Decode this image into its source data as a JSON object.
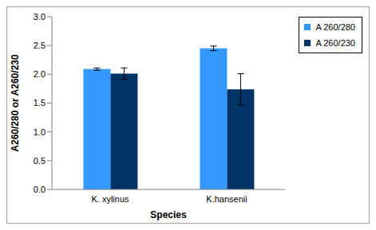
{
  "chart_data": {
    "type": "bar",
    "x_label": "Species",
    "y_label": "A260/280 or A260/230",
    "categories": [
      "K. xylinus",
      "K.hansenii"
    ],
    "series": [
      {
        "name": "A 260/280",
        "color": "#3399ff",
        "values": [
          2.09,
          2.45
        ],
        "errors": [
          0.02,
          0.04
        ]
      },
      {
        "name": "A 260/230",
        "color": "#003366",
        "values": [
          2.01,
          1.74
        ],
        "errors": [
          0.1,
          0.27
        ]
      }
    ],
    "ylim": [
      0,
      3
    ],
    "yticks": [
      {
        "value": 0,
        "label": "0.0"
      },
      0.5,
      {
        "value": 1,
        "label": "1.0"
      },
      1.5,
      {
        "value": 2,
        "label": "2.0"
      },
      2.5,
      {
        "value": 3,
        "label": "3.0"
      }
    ],
    "grid": false,
    "legend": "upper right"
  }
}
